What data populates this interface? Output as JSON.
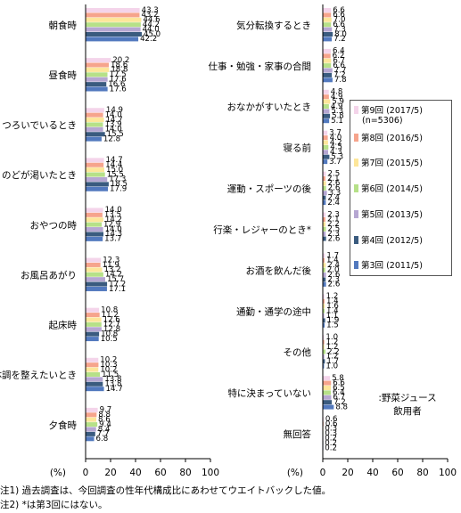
{
  "chart_data": [
    {
      "type": "bar",
      "orientation": "horizontal",
      "categories": [
        "朝食時",
        "昼食時",
        "くつろいでいるとき",
        "のどが渇いたとき",
        "おやつの時",
        "お風呂あがり",
        "起床時",
        "体調を整えたいとき",
        "夕食時"
      ],
      "xlabel": "(%)",
      "xlim": [
        0,
        100
      ],
      "xticks": [
        "0",
        "20",
        "40",
        "60",
        "80",
        "100"
      ],
      "grid": false,
      "series": [
        {
          "name": "第9回 (2017/5)",
          "values": [
            43.3,
            20.2,
            14.9,
            14.7,
            14.0,
            12.3,
            10.8,
            10.2,
            9.7
          ]
        },
        {
          "name": "第8回 (2016/5)",
          "values": [
            43.2,
            18.6,
            14.0,
            14.4,
            13.5,
            11.9,
            11.2,
            10.3,
            8.8
          ]
        },
        {
          "name": "第7回 (2015/5)",
          "values": [
            44.6,
            18.8,
            14.7,
            15.0,
            14.2,
            13.2,
            12.6,
            10.2,
            8.6
          ]
        },
        {
          "name": "第6回 (2014/5)",
          "values": [
            44.2,
            17.5,
            13.9,
            15.5,
            12.9,
            14.2,
            12.7,
            11.5,
            9.4
          ]
        },
        {
          "name": "第5回 (2013/5)",
          "values": [
            44.0,
            17.6,
            14.0,
            17.3,
            14.0,
            15.7,
            12.8,
            13.8,
            8.4
          ]
        },
        {
          "name": "第4回 (2012/5)",
          "values": [
            45.0,
            16.6,
            15.5,
            18.5,
            14.3,
            17.2,
            10.8,
            13.8,
            7.7
          ]
        },
        {
          "name": "第3回 (2011/5)",
          "values": [
            42.2,
            17.6,
            12.8,
            17.9,
            13.7,
            17.1,
            10.5,
            14.7,
            6.8
          ]
        }
      ]
    },
    {
      "type": "bar",
      "orientation": "horizontal",
      "categories": [
        "気分転換するとき",
        "仕事・勉強・家事の合間",
        "おなかがすいたとき",
        "寝る前",
        "運動・スポーツの後",
        "行楽・レジャーのとき*",
        "お酒を飲んだ後",
        "通勤・通学の途中",
        "その他",
        "特に決まっていない",
        "無回答"
      ],
      "xlabel": "(%)",
      "xlim": [
        0,
        100
      ],
      "xticks": [
        "0",
        "20",
        "40",
        "60",
        "80",
        "100"
      ],
      "grid": false,
      "series": [
        {
          "name": "第9回 (2017/5)",
          "values": [
            6.6,
            6.4,
            4.8,
            3.7,
            2.5,
            2.3,
            1.7,
            1.2,
            1.0,
            5.8,
            0.6
          ]
        },
        {
          "name": "第8回 (2016/5)",
          "values": [
            6.6,
            6.2,
            4.9,
            4.0,
            2.1,
            2.1,
            1.4,
            1.4,
            1.2,
            6.6,
            0.6
          ]
        },
        {
          "name": "第7回 (2015/5)",
          "values": [
            7.0,
            6.7,
            5.9,
            4.2,
            2.6,
            2.2,
            2.4,
            1.6,
            1.2,
            6.5,
            0.3
          ]
        },
        {
          "name": "第6回 (2014/5)",
          "values": [
            6.6,
            6.6,
            4.9,
            4.5,
            2.6,
            2.5,
            2.0,
            1.4,
            2.2,
            6.4,
            0.3
          ]
        },
        {
          "name": "第5回 (2013/5)",
          "values": [
            7.3,
            7.7,
            5.3,
            4.3,
            3.3,
            2.3,
            2.6,
            1.1,
            1.2,
            6.7,
            0.2
          ]
        },
        {
          "name": "第4回 (2012/5)",
          "values": [
            8.0,
            7.2,
            5.8,
            5.3,
            2.4,
            2.6,
            2.3,
            1.9,
            1.7,
            7.2,
            0.2
          ]
        },
        {
          "name": "第3回 (2011/5)",
          "values": [
            7.2,
            7.8,
            5.1,
            3.7,
            2.4,
            null,
            2.6,
            1.5,
            1.0,
            8.8,
            0.2
          ]
        }
      ]
    }
  ],
  "legend": {
    "items": [
      "第9回 (2017/5)",
      "第8回 (2016/5)",
      "第7回 (2015/5)",
      "第6回 (2014/5)",
      "第5回 (2013/5)",
      "第4回 (2012/5)",
      "第3回 (2011/5)"
    ],
    "sub_label": "(n=5306)",
    "placement": "top-right"
  },
  "scope_note": ":野菜ジュース\n飲用者",
  "notes": [
    "注1) 過去調査は、今回調査の性年代構成比にあわせてウエイトバックした値。",
    "注2) *は第3回にはない。"
  ],
  "colors": {
    "series": [
      "#f4d4ea",
      "#f6a48c",
      "#fde69a",
      "#b6e188",
      "#b6a7d2",
      "#3a5b7f",
      "#5279be"
    ]
  }
}
